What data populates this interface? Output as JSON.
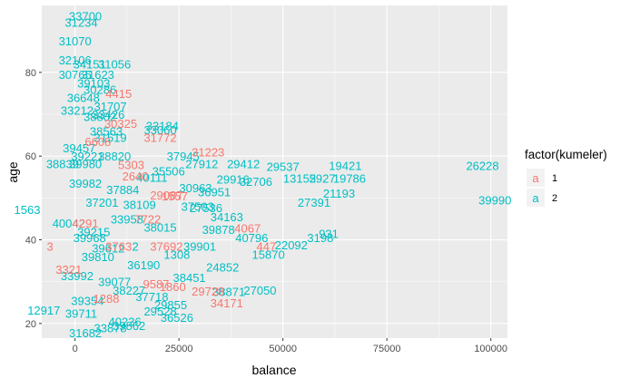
{
  "chart_data": {
    "type": "scatter",
    "geom": "text",
    "title": "",
    "xlabel": "balance",
    "ylabel": "age",
    "xlim": [
      -8000,
      104000
    ],
    "ylim": [
      16.5,
      96
    ],
    "x_ticks": [
      0,
      25000,
      50000,
      75000,
      100000
    ],
    "x_tick_labels": [
      "0",
      "25000",
      "50000",
      "75000",
      "100000"
    ],
    "y_ticks": [
      20,
      40,
      60,
      80
    ],
    "y_tick_labels": [
      "20",
      "40",
      "60",
      "80"
    ],
    "grid": true,
    "legend": {
      "title": "factor(kumeler)",
      "position": "right",
      "key_glyph": "a",
      "entries": [
        {
          "label": "1",
          "color": "#F8766D"
        },
        {
          "label": "2",
          "color": "#00BFC4"
        }
      ]
    },
    "colors": {
      "panel_background": "#EBEBEB",
      "grid_major": "#FFFFFF",
      "series_1": "#F8766D",
      "series_2": "#00BFC4"
    },
    "series": [
      {
        "name": "1",
        "points": [
          {
            "label": "31772",
            "x": 20500,
            "y": 64.5
          },
          {
            "label": "31223",
            "x": 32000,
            "y": 61.0
          },
          {
            "label": "30325",
            "x": 11000,
            "y": 67.8
          },
          {
            "label": "4415",
            "x": 10500,
            "y": 75.0
          },
          {
            "label": "34171",
            "x": 36500,
            "y": 25.0
          },
          {
            "label": "29728",
            "x": 32000,
            "y": 27.8
          },
          {
            "label": "447",
            "x": 46000,
            "y": 38.5
          },
          {
            "label": "4067",
            "x": 41500,
            "y": 42.8
          },
          {
            "label": "37692",
            "x": 22000,
            "y": 38.5
          },
          {
            "label": "1557",
            "x": 24000,
            "y": 50.5
          },
          {
            "label": "5303",
            "x": 13500,
            "y": 58.0
          },
          {
            "label": "29087",
            "x": 22000,
            "y": 50.7
          },
          {
            "label": "3763",
            "x": 10500,
            "y": 38.5
          },
          {
            "label": "2640",
            "x": 14500,
            "y": 55.3
          },
          {
            "label": "9587",
            "x": 19500,
            "y": 29.5
          },
          {
            "label": "1288",
            "x": 7500,
            "y": 26.0
          },
          {
            "label": "3",
            "x": -6000,
            "y": 38.5
          },
          {
            "label": "4291",
            "x": 2500,
            "y": 44.0
          },
          {
            "label": "7722",
            "x": 17500,
            "y": 45.0
          },
          {
            "label": "1860",
            "x": 23500,
            "y": 28.8
          },
          {
            "label": "6608",
            "x": 5500,
            "y": 63.5
          },
          {
            "label": "3321",
            "x": -1500,
            "y": 33.0
          }
        ]
      },
      {
        "name": "2",
        "points": [
          {
            "label": "33700",
            "x": 2500,
            "y": 93.5
          },
          {
            "label": "31234",
            "x": 1500,
            "y": 92.0
          },
          {
            "label": "31070",
            "x": 0,
            "y": 87.5
          },
          {
            "label": "32106",
            "x": 0,
            "y": 83.0
          },
          {
            "label": "31056",
            "x": 9500,
            "y": 82.0
          },
          {
            "label": "34151",
            "x": 3500,
            "y": 82.0
          },
          {
            "label": "31623",
            "x": 5500,
            "y": 79.5
          },
          {
            "label": "30765",
            "x": 0,
            "y": 79.5
          },
          {
            "label": "30286",
            "x": 6000,
            "y": 76.0
          },
          {
            "label": "31707",
            "x": 8500,
            "y": 72.0
          },
          {
            "label": "33426",
            "x": 8000,
            "y": 70.0
          },
          {
            "label": "33184",
            "x": 21000,
            "y": 67.3
          },
          {
            "label": "33060",
            "x": 20500,
            "y": 66.3
          },
          {
            "label": "31519",
            "x": 8500,
            "y": 64.5
          },
          {
            "label": "38839",
            "x": -3000,
            "y": 58.2
          },
          {
            "label": "39980",
            "x": 2500,
            "y": 58.2
          },
          {
            "label": "29537",
            "x": 50000,
            "y": 57.5
          },
          {
            "label": "19421",
            "x": 65000,
            "y": 57.8
          },
          {
            "label": "26228",
            "x": 98000,
            "y": 57.8
          },
          {
            "label": "29412",
            "x": 40500,
            "y": 58.2
          },
          {
            "label": "27912",
            "x": 30500,
            "y": 58.2
          },
          {
            "label": "13155",
            "x": 54000,
            "y": 54.7
          },
          {
            "label": "2927",
            "x": 59500,
            "y": 54.7
          },
          {
            "label": "19786",
            "x": 66000,
            "y": 54.7
          },
          {
            "label": "29916",
            "x": 38000,
            "y": 54.5
          },
          {
            "label": "32706",
            "x": 43500,
            "y": 54.0
          },
          {
            "label": "39982",
            "x": 2500,
            "y": 53.5
          },
          {
            "label": "30963",
            "x": 29000,
            "y": 52.5
          },
          {
            "label": "21193",
            "x": 63500,
            "y": 51.2
          },
          {
            "label": "39990",
            "x": 101000,
            "y": 49.5
          },
          {
            "label": "27391",
            "x": 57500,
            "y": 49.0
          },
          {
            "label": "1563",
            "x": -11500,
            "y": 47.3
          },
          {
            "label": "27536",
            "x": 31500,
            "y": 47.7
          },
          {
            "label": "34163",
            "x": 36500,
            "y": 45.5
          },
          {
            "label": "39878",
            "x": 34500,
            "y": 42.5
          },
          {
            "label": "40796",
            "x": 42500,
            "y": 40.5
          },
          {
            "label": "931",
            "x": 61000,
            "y": 41.5
          },
          {
            "label": "3198",
            "x": 59000,
            "y": 40.5
          },
          {
            "label": "22092",
            "x": 52000,
            "y": 38.8
          },
          {
            "label": "15870",
            "x": 46500,
            "y": 36.5
          },
          {
            "label": "39968",
            "x": 3500,
            "y": 40.5
          },
          {
            "label": "1308",
            "x": 24500,
            "y": 36.5
          },
          {
            "label": "2",
            "x": 14500,
            "y": 38.5
          },
          {
            "label": "24852",
            "x": 35500,
            "y": 33.5
          },
          {
            "label": "33992",
            "x": 500,
            "y": 31.5
          },
          {
            "label": "27050",
            "x": 44500,
            "y": 28.0
          },
          {
            "label": "38871",
            "x": 37000,
            "y": 27.7
          },
          {
            "label": "29855",
            "x": 23000,
            "y": 24.5
          },
          {
            "label": "12917",
            "x": -7500,
            "y": 23.2
          },
          {
            "label": "29528",
            "x": 20500,
            "y": 23.0
          },
          {
            "label": "36526",
            "x": 24500,
            "y": 21.5
          },
          {
            "label": "40236",
            "x": 12000,
            "y": 20.5
          },
          {
            "label": "39862",
            "x": 13000,
            "y": 19.5
          },
          {
            "label": "33878",
            "x": 8500,
            "y": 19.0
          },
          {
            "label": "31682",
            "x": 2500,
            "y": 17.8
          },
          {
            "label": "39810",
            "x": 5500,
            "y": 36.0
          },
          {
            "label": "33958",
            "x": 12500,
            "y": 45.0
          },
          {
            "label": "40111",
            "x": 18500,
            "y": 55.0
          },
          {
            "label": "38820",
            "x": 9500,
            "y": 60.0
          },
          {
            "label": "39221",
            "x": 3000,
            "y": 60.0
          },
          {
            "label": "37945",
            "x": 26000,
            "y": 60.0
          },
          {
            "label": "35506",
            "x": 22500,
            "y": 56.5
          },
          {
            "label": "38109",
            "x": 15500,
            "y": 48.5
          },
          {
            "label": "37201",
            "x": 6500,
            "y": 49.0
          },
          {
            "label": "40042",
            "x": -1500,
            "y": 44.0
          },
          {
            "label": "39215",
            "x": 4500,
            "y": 42.0
          },
          {
            "label": "36190",
            "x": 16500,
            "y": 34.0
          },
          {
            "label": "38451",
            "x": 27500,
            "y": 31.0
          },
          {
            "label": "39077",
            "x": 9500,
            "y": 30.0
          },
          {
            "label": "37718",
            "x": 18500,
            "y": 26.5
          },
          {
            "label": "39354",
            "x": 3000,
            "y": 25.5
          },
          {
            "label": "38802",
            "x": 6000,
            "y": 69.5
          },
          {
            "label": "36648",
            "x": 2000,
            "y": 74.0
          },
          {
            "label": "39103",
            "x": 4500,
            "y": 77.5
          },
          {
            "label": "33212",
            "x": 500,
            "y": 71.0
          },
          {
            "label": "38563",
            "x": 7500,
            "y": 66.0
          },
          {
            "label": "39457",
            "x": 1000,
            "y": 62.0
          },
          {
            "label": "37884",
            "x": 11500,
            "y": 52.0
          },
          {
            "label": "39612",
            "x": 8000,
            "y": 38.0
          },
          {
            "label": "38227",
            "x": 13000,
            "y": 28.0
          },
          {
            "label": "39711",
            "x": 1500,
            "y": 22.5
          },
          {
            "label": "39901",
            "x": 30000,
            "y": 38.5
          },
          {
            "label": "38015",
            "x": 20500,
            "y": 43.0
          },
          {
            "label": "37503",
            "x": 29500,
            "y": 48.0
          },
          {
            "label": "36951",
            "x": 33500,
            "y": 51.5
          }
        ]
      }
    ]
  }
}
